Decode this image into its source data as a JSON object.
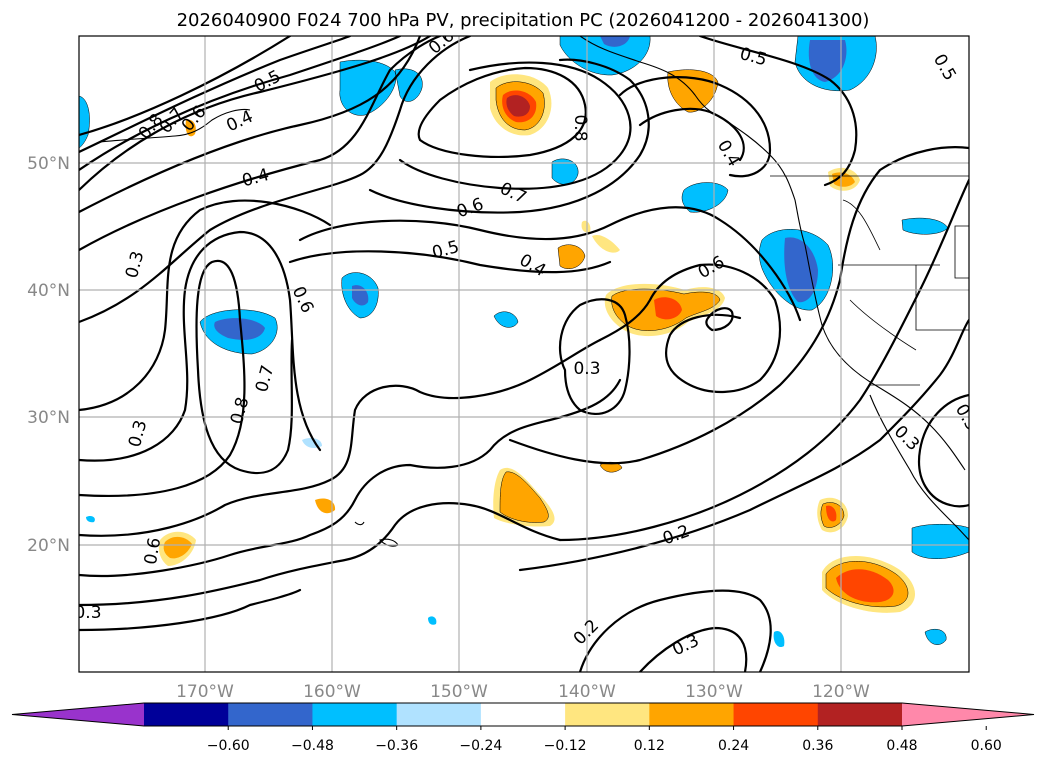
{
  "title": "2026040900 F024 700 hPa PV, precipitation PC (2026041200 - 2026041300)",
  "map": {
    "lon_labels": [
      "170°W",
      "160°W",
      "150°W",
      "140°W",
      "130°W",
      "120°W"
    ],
    "lat_labels": [
      "50°N",
      "40°N",
      "30°N",
      "20°N"
    ]
  },
  "colorbar": {
    "ticks": [
      "−0.60",
      "−0.48",
      "−0.36",
      "−0.24",
      "−0.12",
      "0.12",
      "0.24",
      "0.36",
      "0.48",
      "0.60"
    ],
    "colors": [
      "#9933cc",
      "#000099",
      "#3366cc",
      "#00bfff",
      "#b0e2ff",
      "#ffffff",
      "#ffe680",
      "#ffa500",
      "#ff4500",
      "#b22222",
      "#ff88aa"
    ]
  },
  "contour_labels": [
    "0.5",
    "0.4",
    "0.8",
    "0.7",
    "0.6",
    "0.4",
    "0.3",
    "0.6",
    "0.7",
    "0.8",
    "0.3",
    "0.6",
    "0.8",
    "0.7",
    "0.6",
    "0.5",
    "0.4",
    "0.3",
    "0.6",
    "0.5",
    "0.4",
    "0.5",
    "0.3",
    "0.3",
    "0.2",
    "0.2",
    "0.3",
    "0.6",
    "0.3"
  ]
}
